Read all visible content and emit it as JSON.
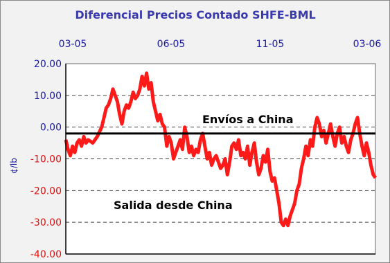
{
  "chart_data": {
    "type": "line",
    "title": "Diferencial Precios Contado SHFE-BML",
    "ylabel": "¢/lb",
    "xlabel": "",
    "x_ticks": [
      "03-05",
      "06-05",
      "11-05",
      "03-06"
    ],
    "y_ticks": [
      "20.00",
      "10.00",
      "0.00",
      "-10.00",
      "-20.00",
      "-30.00",
      "-40.00"
    ],
    "ylim": [
      -40,
      20
    ],
    "grid": "horizontal dashed",
    "reference_line": -2,
    "annotations": [
      "Envíos a China",
      "Salida desde China"
    ],
    "colors": {
      "series": "#ff1a1a",
      "title": "#3a3ab0",
      "positive_ticks": "#1a1aa0",
      "negative_ticks": "#e01010",
      "reference": "#000000",
      "plot_bg": "#ffffff",
      "frame_bg": "#f2f2f2"
    },
    "series": [
      {
        "values": [
          [
            0,
            -4
          ],
          [
            1,
            -7
          ],
          [
            2,
            -9
          ],
          [
            3,
            -6
          ],
          [
            4,
            -8
          ],
          [
            5,
            -5
          ],
          [
            6,
            -4
          ],
          [
            7,
            -6
          ],
          [
            8,
            -3
          ],
          [
            9,
            -5
          ],
          [
            10,
            -4
          ],
          [
            12,
            -5
          ],
          [
            14,
            -3
          ],
          [
            16,
            0
          ],
          [
            17,
            3
          ],
          [
            18,
            6
          ],
          [
            19,
            7
          ],
          [
            20,
            9
          ],
          [
            21,
            12
          ],
          [
            22,
            10
          ],
          [
            23,
            8
          ],
          [
            24,
            4
          ],
          [
            25,
            1
          ],
          [
            26,
            5
          ],
          [
            27,
            7
          ],
          [
            28,
            6
          ],
          [
            29,
            8
          ],
          [
            30,
            11
          ],
          [
            31,
            9
          ],
          [
            32,
            10
          ],
          [
            33,
            12
          ],
          [
            34,
            16
          ],
          [
            35,
            13
          ],
          [
            36,
            17
          ],
          [
            37,
            12
          ],
          [
            38,
            14
          ],
          [
            39,
            8
          ],
          [
            40,
            5
          ],
          [
            41,
            2
          ],
          [
            42,
            4
          ],
          [
            43,
            1
          ],
          [
            44,
            0
          ],
          [
            45,
            -6
          ],
          [
            46,
            -3
          ],
          [
            47,
            -5
          ],
          [
            48,
            -10
          ],
          [
            49,
            -8
          ],
          [
            50,
            -6
          ],
          [
            51,
            -4
          ],
          [
            52,
            -7
          ],
          [
            53,
            0
          ],
          [
            54,
            -3
          ],
          [
            55,
            -8
          ],
          [
            56,
            -6
          ],
          [
            57,
            -9
          ],
          [
            58,
            -7
          ],
          [
            59,
            -8
          ],
          [
            60,
            -4
          ],
          [
            61,
            -2
          ],
          [
            62,
            -6
          ],
          [
            63,
            -10
          ],
          [
            64,
            -8
          ],
          [
            65,
            -12
          ],
          [
            66,
            -10
          ],
          [
            67,
            -9
          ],
          [
            68,
            -11
          ],
          [
            69,
            -13
          ],
          [
            70,
            -12
          ],
          [
            71,
            -10
          ],
          [
            72,
            -15
          ],
          [
            73,
            -11
          ],
          [
            74,
            -6
          ],
          [
            75,
            -5
          ],
          [
            76,
            -7
          ],
          [
            77,
            -4
          ],
          [
            78,
            -9
          ],
          [
            79,
            -8
          ],
          [
            80,
            -10
          ],
          [
            81,
            -6
          ],
          [
            82,
            -12
          ],
          [
            83,
            -8
          ],
          [
            84,
            -5
          ],
          [
            85,
            -11
          ],
          [
            86,
            -15
          ],
          [
            87,
            -13
          ],
          [
            88,
            -9
          ],
          [
            89,
            -11
          ],
          [
            90,
            -7
          ],
          [
            91,
            -14
          ],
          [
            92,
            -17
          ],
          [
            93,
            -16
          ],
          [
            94,
            -20
          ],
          [
            95,
            -24
          ],
          [
            96,
            -30
          ],
          [
            97,
            -31
          ],
          [
            98,
            -29
          ],
          [
            99,
            -31
          ],
          [
            100,
            -28
          ],
          [
            101,
            -26
          ],
          [
            102,
            -24
          ],
          [
            103,
            -20
          ],
          [
            104,
            -18
          ],
          [
            105,
            -13
          ],
          [
            106,
            -10
          ],
          [
            107,
            -6
          ],
          [
            108,
            -9
          ],
          [
            109,
            -4
          ],
          [
            110,
            -6
          ],
          [
            111,
            0
          ],
          [
            112,
            3
          ],
          [
            113,
            1
          ],
          [
            114,
            -3
          ],
          [
            115,
            -1
          ],
          [
            116,
            -5
          ],
          [
            117,
            -2
          ],
          [
            118,
            1
          ],
          [
            119,
            -3
          ],
          [
            120,
            -6
          ],
          [
            121,
            -2
          ],
          [
            122,
            0
          ],
          [
            123,
            -5
          ],
          [
            124,
            -3
          ],
          [
            125,
            -6
          ],
          [
            126,
            -8
          ],
          [
            127,
            -4
          ],
          [
            128,
            -2
          ],
          [
            129,
            1
          ],
          [
            130,
            3
          ],
          [
            131,
            -2
          ],
          [
            132,
            -6
          ],
          [
            133,
            -9
          ],
          [
            134,
            -5
          ],
          [
            135,
            -8
          ],
          [
            136,
            -12
          ],
          [
            137,
            -15
          ],
          [
            138,
            -16
          ]
        ]
      }
    ]
  }
}
